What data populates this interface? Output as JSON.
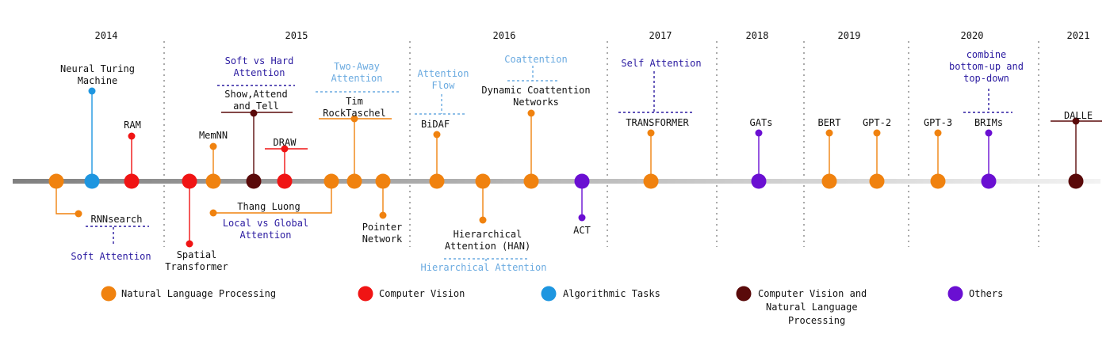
{
  "colors": {
    "nlp": "#f0820f",
    "cv": "#f01414",
    "algo": "#1e96e0",
    "cv_nlp": "#5a0a0a",
    "others": "#6a0fd2",
    "concept_dark": "#2a1aa0",
    "concept_light": "#6aaae0",
    "text": "#111111",
    "divider": "#aaaaaa"
  },
  "years": [
    "2014",
    "2015",
    "2016",
    "2017",
    "2018",
    "2019",
    "2020",
    "2021"
  ],
  "events": [
    {
      "id": "rnnsearch",
      "cat": "nlp",
      "lines": [
        "RNNsearch"
      ],
      "concept": {
        "lines": [
          "Soft Attention"
        ],
        "tone": "dark"
      }
    },
    {
      "id": "ntm",
      "cat": "algo",
      "lines": [
        "Neural Turing",
        "Machine"
      ]
    },
    {
      "id": "ram",
      "cat": "cv",
      "lines": [
        "RAM"
      ]
    },
    {
      "id": "spatial-transformer",
      "cat": "cv",
      "lines": [
        "Spatial",
        "Transformer"
      ]
    },
    {
      "id": "memnn",
      "cat": "nlp",
      "lines": [
        "MemNN"
      ]
    },
    {
      "id": "show-attend-tell",
      "cat": "cv_nlp",
      "lines": [
        "Show,Attend",
        "and Tell"
      ],
      "concept": {
        "lines": [
          "Soft vs Hard",
          "Attention"
        ],
        "tone": "dark"
      }
    },
    {
      "id": "draw",
      "cat": "cv",
      "lines": [
        "DRAW"
      ]
    },
    {
      "id": "thang-luong",
      "cat": "nlp",
      "lines": [
        "Thang Luong"
      ],
      "concept": {
        "lines": [
          "Local vs Global",
          "Attention"
        ],
        "tone": "dark"
      }
    },
    {
      "id": "rocktaschel",
      "cat": "nlp",
      "lines": [
        "Tim",
        "RockTaschel"
      ],
      "concept": {
        "lines": [
          "Two-Away",
          "Attention"
        ],
        "tone": "light"
      }
    },
    {
      "id": "pointer-network",
      "cat": "nlp",
      "lines": [
        "Pointer",
        "Network"
      ]
    },
    {
      "id": "bidaf",
      "cat": "nlp",
      "lines": [
        "BiDAF"
      ],
      "concept": {
        "lines": [
          "Attention",
          "Flow"
        ],
        "tone": "light"
      }
    },
    {
      "id": "han",
      "cat": "nlp",
      "lines": [
        "Hierarchical",
        "Attention (HAN)"
      ],
      "concept": {
        "lines": [
          "Hierarchical Attention"
        ],
        "tone": "light"
      }
    },
    {
      "id": "dcn",
      "cat": "nlp",
      "lines": [
        "Dynamic Coattention",
        "Networks"
      ],
      "concept": {
        "lines": [
          "Coattention"
        ],
        "tone": "light"
      }
    },
    {
      "id": "act",
      "cat": "others",
      "lines": [
        "ACT"
      ]
    },
    {
      "id": "transformer",
      "cat": "nlp",
      "lines": [
        "TRANSFORMER"
      ],
      "concept": {
        "lines": [
          "Self Attention"
        ],
        "tone": "dark"
      }
    },
    {
      "id": "gats",
      "cat": "others",
      "lines": [
        "GATs"
      ]
    },
    {
      "id": "bert",
      "cat": "nlp",
      "lines": [
        "BERT"
      ]
    },
    {
      "id": "gpt-2",
      "cat": "nlp",
      "lines": [
        "GPT-2"
      ]
    },
    {
      "id": "gpt-3",
      "cat": "nlp",
      "lines": [
        "GPT-3"
      ]
    },
    {
      "id": "brims",
      "cat": "others",
      "lines": [
        "BRIMs"
      ],
      "concept": {
        "lines": [
          "combine",
          "bottom-up and",
          "top-down"
        ],
        "tone": "dark"
      }
    },
    {
      "id": "dalle",
      "cat": "cv_nlp",
      "lines": [
        "DALLE"
      ]
    }
  ],
  "legend": [
    {
      "cat": "nlp",
      "lines": [
        "Natural Language Processing"
      ]
    },
    {
      "cat": "cv",
      "lines": [
        "Computer Vision"
      ]
    },
    {
      "cat": "algo",
      "lines": [
        "Algorithmic Tasks"
      ]
    },
    {
      "cat": "cv_nlp",
      "lines": [
        "Computer Vision and",
        "Natural Language",
        "Processing"
      ]
    },
    {
      "cat": "others",
      "lines": [
        "Others"
      ]
    }
  ]
}
